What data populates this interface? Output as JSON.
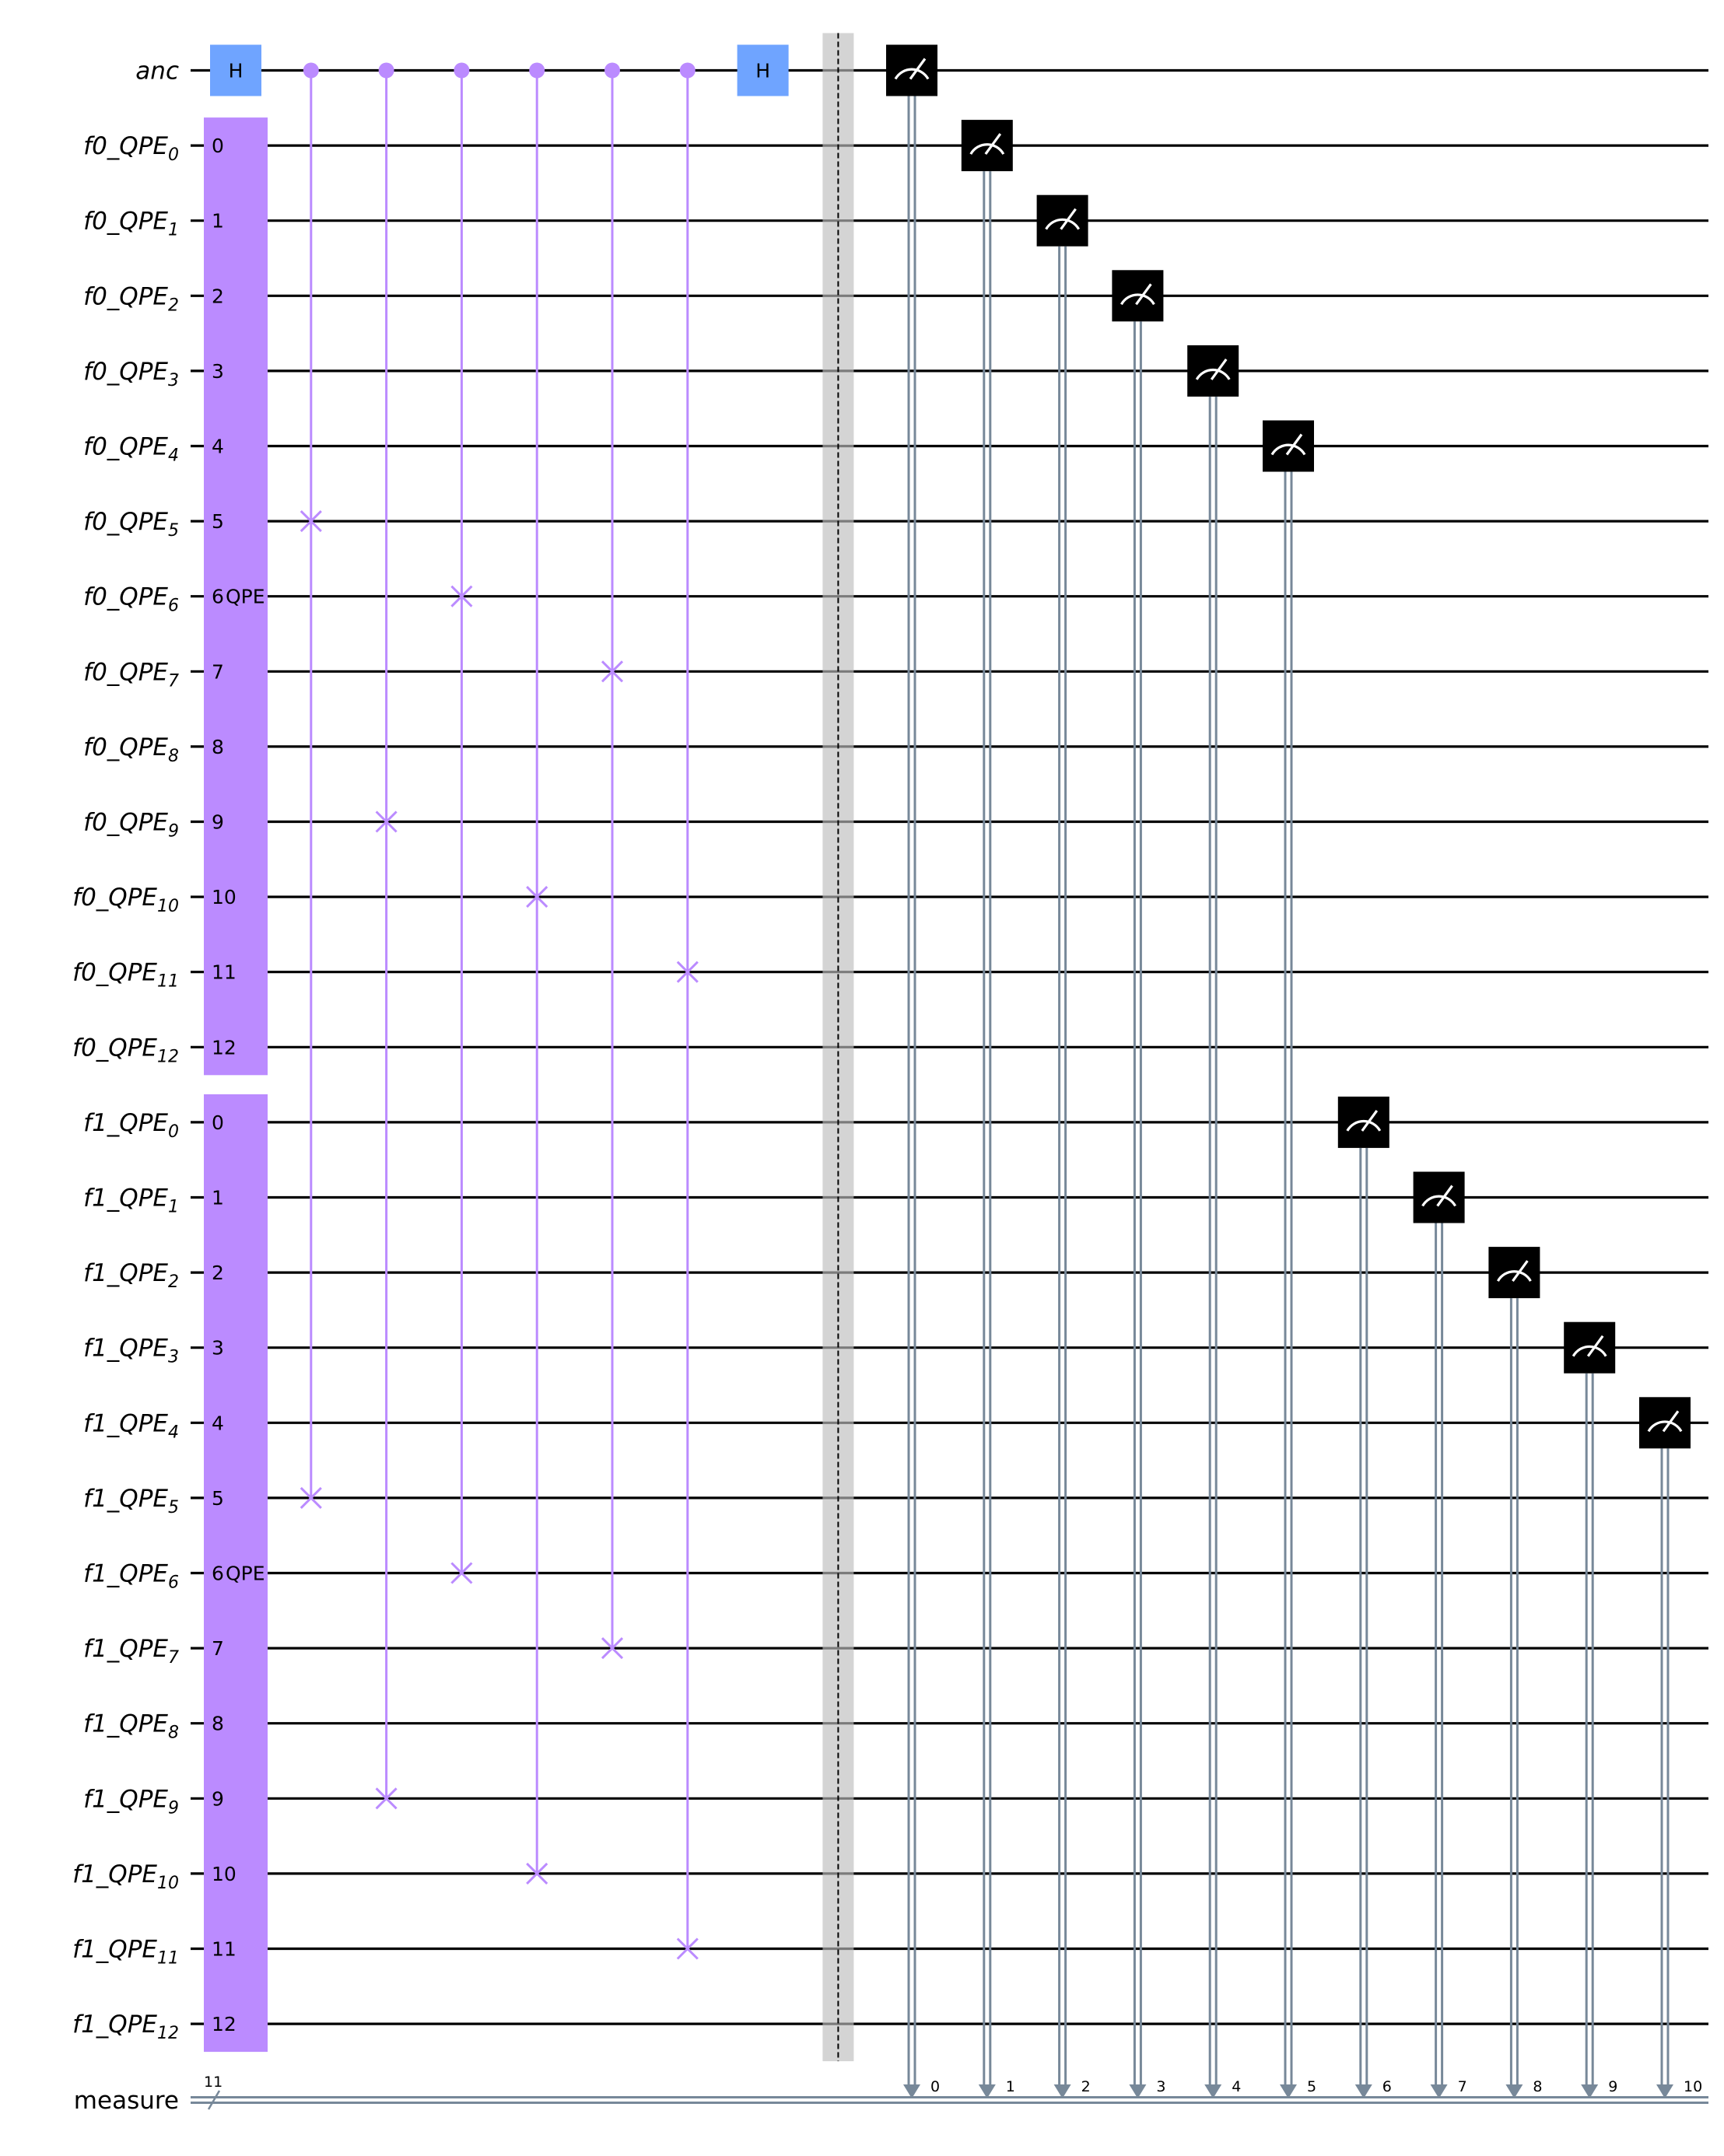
{
  "circuit": {
    "quantum_wires": [
      {
        "name": "anc",
        "base": "anc",
        "sub": ""
      },
      {
        "name": "f0_QPE_0",
        "base": "f0_QPE",
        "sub": "0"
      },
      {
        "name": "f0_QPE_1",
        "base": "f0_QPE",
        "sub": "1"
      },
      {
        "name": "f0_QPE_2",
        "base": "f0_QPE",
        "sub": "2"
      },
      {
        "name": "f0_QPE_3",
        "base": "f0_QPE",
        "sub": "3"
      },
      {
        "name": "f0_QPE_4",
        "base": "f0_QPE",
        "sub": "4"
      },
      {
        "name": "f0_QPE_5",
        "base": "f0_QPE",
        "sub": "5"
      },
      {
        "name": "f0_QPE_6",
        "base": "f0_QPE",
        "sub": "6"
      },
      {
        "name": "f0_QPE_7",
        "base": "f0_QPE",
        "sub": "7"
      },
      {
        "name": "f0_QPE_8",
        "base": "f0_QPE",
        "sub": "8"
      },
      {
        "name": "f0_QPE_9",
        "base": "f0_QPE",
        "sub": "9"
      },
      {
        "name": "f0_QPE_10",
        "base": "f0_QPE",
        "sub": "10"
      },
      {
        "name": "f0_QPE_11",
        "base": "f0_QPE",
        "sub": "11"
      },
      {
        "name": "f0_QPE_12",
        "base": "f0_QPE",
        "sub": "12"
      },
      {
        "name": "f1_QPE_0",
        "base": "f1_QPE",
        "sub": "0"
      },
      {
        "name": "f1_QPE_1",
        "base": "f1_QPE",
        "sub": "1"
      },
      {
        "name": "f1_QPE_2",
        "base": "f1_QPE",
        "sub": "2"
      },
      {
        "name": "f1_QPE_3",
        "base": "f1_QPE",
        "sub": "3"
      },
      {
        "name": "f1_QPE_4",
        "base": "f1_QPE",
        "sub": "4"
      },
      {
        "name": "f1_QPE_5",
        "base": "f1_QPE",
        "sub": "5"
      },
      {
        "name": "f1_QPE_6",
        "base": "f1_QPE",
        "sub": "6"
      },
      {
        "name": "f1_QPE_7",
        "base": "f1_QPE",
        "sub": "7"
      },
      {
        "name": "f1_QPE_8",
        "base": "f1_QPE",
        "sub": "8"
      },
      {
        "name": "f1_QPE_9",
        "base": "f1_QPE",
        "sub": "9"
      },
      {
        "name": "f1_QPE_10",
        "base": "f1_QPE",
        "sub": "10"
      },
      {
        "name": "f1_QPE_11",
        "base": "f1_QPE",
        "sub": "11"
      },
      {
        "name": "f1_QPE_12",
        "base": "f1_QPE",
        "sub": "12"
      }
    ],
    "classical_register": {
      "label": "measure",
      "size": "11"
    },
    "qpe_blocks": [
      {
        "label": "QPE",
        "first_wire": 1,
        "last_wire": 13,
        "label_wire": 7,
        "indices": [
          "0",
          "1",
          "2",
          "3",
          "4",
          "5",
          "6",
          "7",
          "8",
          "9",
          "10",
          "11",
          "12"
        ]
      },
      {
        "label": "QPE",
        "first_wire": 14,
        "last_wire": 26,
        "label_wire": 20,
        "indices": [
          "0",
          "1",
          "2",
          "3",
          "4",
          "5",
          "6",
          "7",
          "8",
          "9",
          "10",
          "11",
          "12"
        ]
      }
    ],
    "h_gates": [
      {
        "label": "H",
        "wire": 0,
        "step": 0
      },
      {
        "label": "H",
        "wire": 0,
        "step": 7
      }
    ],
    "cswaps": [
      {
        "step": 1,
        "control": 0,
        "targets": [
          6,
          19
        ]
      },
      {
        "step": 2,
        "control": 0,
        "targets": [
          10,
          23
        ]
      },
      {
        "step": 3,
        "control": 0,
        "targets": [
          7,
          20
        ]
      },
      {
        "step": 4,
        "control": 0,
        "targets": [
          11,
          24
        ]
      },
      {
        "step": 5,
        "control": 0,
        "targets": [
          8,
          21
        ]
      },
      {
        "step": 6,
        "control": 0,
        "targets": [
          12,
          25
        ]
      }
    ],
    "barrier": {
      "step": 8
    },
    "measurements": [
      {
        "wire": 0,
        "bit": "0"
      },
      {
        "wire": 1,
        "bit": "1"
      },
      {
        "wire": 2,
        "bit": "2"
      },
      {
        "wire": 3,
        "bit": "3"
      },
      {
        "wire": 4,
        "bit": "4"
      },
      {
        "wire": 5,
        "bit": "5"
      },
      {
        "wire": 14,
        "bit": "6"
      },
      {
        "wire": 15,
        "bit": "7"
      },
      {
        "wire": 16,
        "bit": "8"
      },
      {
        "wire": 17,
        "bit": "9"
      },
      {
        "wire": 18,
        "bit": "10"
      }
    ],
    "colors": {
      "wire": "#000000",
      "hadamard": "#6fa4ff",
      "qpe_block": "#bb8bff",
      "control_swap": "#bb8bff",
      "barrier": "#bdbdbd",
      "measure_box": "#000000",
      "classical_line": "#778899"
    }
  }
}
